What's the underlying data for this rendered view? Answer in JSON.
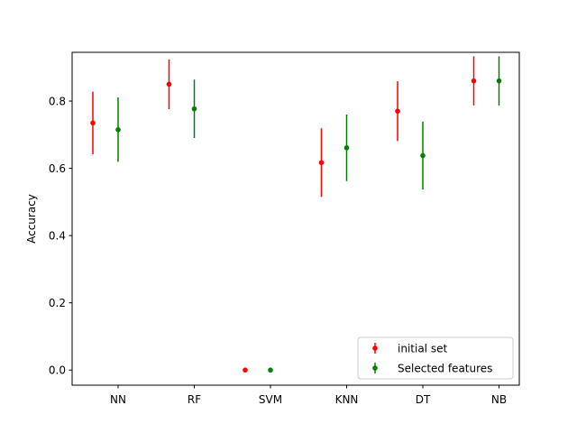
{
  "chart_data": {
    "type": "errorbar",
    "ylabel": "Accuracy",
    "xlabel": "",
    "title": "",
    "categories": [
      "NN",
      "RF",
      "SVM",
      "KNN",
      "DT",
      "NB"
    ],
    "ylim": [
      -0.045,
      0.945
    ],
    "yticks": [
      "0.0",
      "0.2",
      "0.4",
      "0.6",
      "0.8"
    ],
    "ytick_values": [
      0.0,
      0.2,
      0.4,
      0.6,
      0.8
    ],
    "grid": false,
    "legend_position": "lower-right",
    "series": [
      {
        "name": "initial set",
        "color": "#ff0000",
        "values": [
          0.735,
          0.85,
          0.0,
          0.617,
          0.77,
          0.86
        ],
        "errors": [
          0.093,
          0.074,
          0.0,
          0.102,
          0.089,
          0.073
        ]
      },
      {
        "name": "Selected features",
        "color": "#008000",
        "values": [
          0.715,
          0.777,
          0.0,
          0.661,
          0.638,
          0.86
        ],
        "errors": [
          0.096,
          0.087,
          0.0,
          0.099,
          0.101,
          0.073
        ]
      }
    ]
  }
}
